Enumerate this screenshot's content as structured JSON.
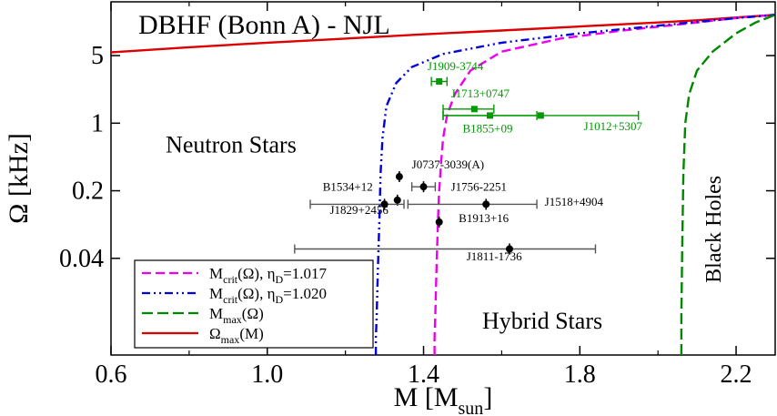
{
  "chart_data": {
    "type": "line",
    "title": "DBHF (Bonn A) - NJL",
    "xlabel": {
      "main": "M [M",
      "sub": "sun",
      "close": "]"
    },
    "ylabel": "Ω [kHz]",
    "xlim": [
      0.6,
      2.3
    ],
    "ylim_log": [
      0.004,
      18
    ],
    "x_ticks": [
      {
        "v": 0.6,
        "label": "0.6"
      },
      {
        "v": 1.0,
        "label": "1.0"
      },
      {
        "v": 1.4,
        "label": "1.4"
      },
      {
        "v": 1.8,
        "label": "1.8"
      },
      {
        "v": 2.2,
        "label": "2.2"
      }
    ],
    "y_ticks": [
      {
        "v": 5,
        "label": "5"
      },
      {
        "v": 1,
        "label": "1"
      },
      {
        "v": 0.2,
        "label": "0.2"
      },
      {
        "v": 0.04,
        "label": "0.04"
      }
    ],
    "regions": [
      {
        "label": "Neutron Stars",
        "x": 0.74,
        "y": 0.5
      },
      {
        "label": "Hybrid Stars",
        "x": 1.55,
        "y": 0.0075
      },
      {
        "label": "Black Holes",
        "x": 2.16,
        "y": 0.08,
        "rotate": true
      }
    ],
    "series": [
      {
        "name": "Ω_max(M)",
        "legend": {
          "main": "Ω",
          "sub": "max",
          "rest": "(M)"
        },
        "color": "#dd0000",
        "dash": "",
        "points": [
          [
            0.6,
            5.4
          ],
          [
            0.8,
            6.1
          ],
          [
            1.0,
            6.8
          ],
          [
            1.2,
            7.5
          ],
          [
            1.4,
            8.3
          ],
          [
            1.6,
            9.1
          ],
          [
            1.8,
            10.0
          ],
          [
            2.0,
            11.0
          ],
          [
            2.1,
            11.6
          ],
          [
            2.2,
            12.4
          ],
          [
            2.3,
            13.2
          ]
        ]
      },
      {
        "name": "M_crit(Ω), η_D=1.017",
        "legend": {
          "main": "M",
          "sub": "crit",
          "rest": "(Ω), η",
          "sub2": "D",
          "rest2": "=1.017"
        },
        "color": "#ee00ee",
        "dash": "10,5",
        "points": [
          [
            1.428,
            0.004
          ],
          [
            1.428,
            0.006
          ],
          [
            1.43,
            0.01
          ],
          [
            1.433,
            0.03
          ],
          [
            1.437,
            0.1
          ],
          [
            1.44,
            0.2
          ],
          [
            1.445,
            0.4
          ],
          [
            1.45,
            0.7
          ],
          [
            1.46,
            1.2
          ],
          [
            1.48,
            2.0
          ],
          [
            1.52,
            3.5
          ],
          [
            1.6,
            5.5
          ],
          [
            1.75,
            7.5
          ],
          [
            1.9,
            9.0
          ],
          [
            2.1,
            11.0
          ],
          [
            2.22,
            12.5
          ],
          [
            2.3,
            13.2
          ]
        ]
      },
      {
        "name": "M_crit(Ω), η_D=1.020",
        "legend": {
          "main": "M",
          "sub": "crit",
          "rest": "(Ω), η",
          "sub2": "D",
          "rest2": "=1.020"
        },
        "color": "#0000dd",
        "dash": "9,4,2,4,2,4",
        "points": [
          [
            1.278,
            0.004
          ],
          [
            1.278,
            0.006
          ],
          [
            1.28,
            0.01
          ],
          [
            1.283,
            0.03
          ],
          [
            1.287,
            0.1
          ],
          [
            1.29,
            0.3
          ],
          [
            1.295,
            0.7
          ],
          [
            1.305,
            1.5
          ],
          [
            1.33,
            2.6
          ],
          [
            1.37,
            3.8
          ],
          [
            1.45,
            5.2
          ],
          [
            1.6,
            6.8
          ],
          [
            1.8,
            8.5
          ],
          [
            2.0,
            10.2
          ],
          [
            2.2,
            12.2
          ],
          [
            2.3,
            13.2
          ]
        ]
      },
      {
        "name": "M_max(Ω)",
        "legend": {
          "main": "M",
          "sub": "max",
          "rest": "(Ω)"
        },
        "color": "#008800",
        "dash": "12,5",
        "points": [
          [
            2.06,
            0.004
          ],
          [
            2.06,
            0.01
          ],
          [
            2.062,
            0.05
          ],
          [
            2.065,
            0.3
          ],
          [
            2.07,
            1.0
          ],
          [
            2.08,
            2.0
          ],
          [
            2.1,
            3.5
          ],
          [
            2.14,
            5.5
          ],
          [
            2.2,
            8.5
          ],
          [
            2.25,
            11.0
          ],
          [
            2.3,
            13.2
          ]
        ]
      }
    ],
    "pulsars": [
      {
        "name": "J1909-3744",
        "x": 1.44,
        "xerr": [
          0.02,
          0.02
        ],
        "y": 2.7,
        "color": "#009900",
        "label_x": 1.41,
        "label_y": 3.55,
        "anchor": "start"
      },
      {
        "name": "J1713+0747",
        "x": 1.53,
        "xerr": [
          0.08,
          0.05
        ],
        "y": 1.4,
        "color": "#009900",
        "label_x": 1.47,
        "label_y": 1.85,
        "anchor": "start"
      },
      {
        "name": "B1855+09",
        "x": 1.57,
        "xerr": [
          0.12,
          0.12
        ],
        "y": 1.2,
        "color": "#009900",
        "label_x": 1.5,
        "label_y": 0.8,
        "anchor": "start"
      },
      {
        "name": "J1012+5307",
        "x": 1.7,
        "xerr": [
          0.25,
          0.25
        ],
        "y": 1.2,
        "color": "#009900",
        "label_x": 1.81,
        "label_y": 0.85,
        "anchor": "start"
      },
      {
        "name": "J0737-3039(A)",
        "x": 1.338,
        "xerr": [
          0,
          0
        ],
        "y": 0.28,
        "color": "#000000",
        "label_x": 1.37,
        "label_y": 0.34,
        "anchor": "start"
      },
      {
        "name": "J1756-2251",
        "x": 1.4,
        "xerr": [
          0.03,
          0.03
        ],
        "y": 0.22,
        "color": "#000000",
        "label_x": 1.47,
        "label_y": 0.2,
        "anchor": "start"
      },
      {
        "name": "B1534+12",
        "x": 1.333,
        "xerr": [
          0,
          0
        ],
        "y": 0.16,
        "color": "#000000",
        "label_x": 1.27,
        "label_y": 0.2,
        "anchor": "end"
      },
      {
        "name": "J1829+2456",
        "x": 1.3,
        "xerr": [
          0.19,
          0.05
        ],
        "y": 0.145,
        "color": "#000000",
        "label_x": 1.16,
        "label_y": 0.115,
        "anchor": "start"
      },
      {
        "name": "J1518+4904",
        "x": 1.56,
        "xerr": [
          0.2,
          0.13
        ],
        "y": 0.145,
        "color": "#000000",
        "label_x": 1.71,
        "label_y": 0.14,
        "anchor": "start"
      },
      {
        "name": "B1913+16",
        "x": 1.44,
        "xerr": [
          0,
          0
        ],
        "y": 0.095,
        "color": "#000000",
        "label_x": 1.49,
        "label_y": 0.095,
        "anchor": "start"
      },
      {
        "name": "J1811-1736",
        "x": 1.62,
        "xerr": [
          0.55,
          0.22
        ],
        "y": 0.05,
        "color": "#000000",
        "label_x": 1.51,
        "label_y": 0.038,
        "anchor": "start"
      }
    ]
  }
}
